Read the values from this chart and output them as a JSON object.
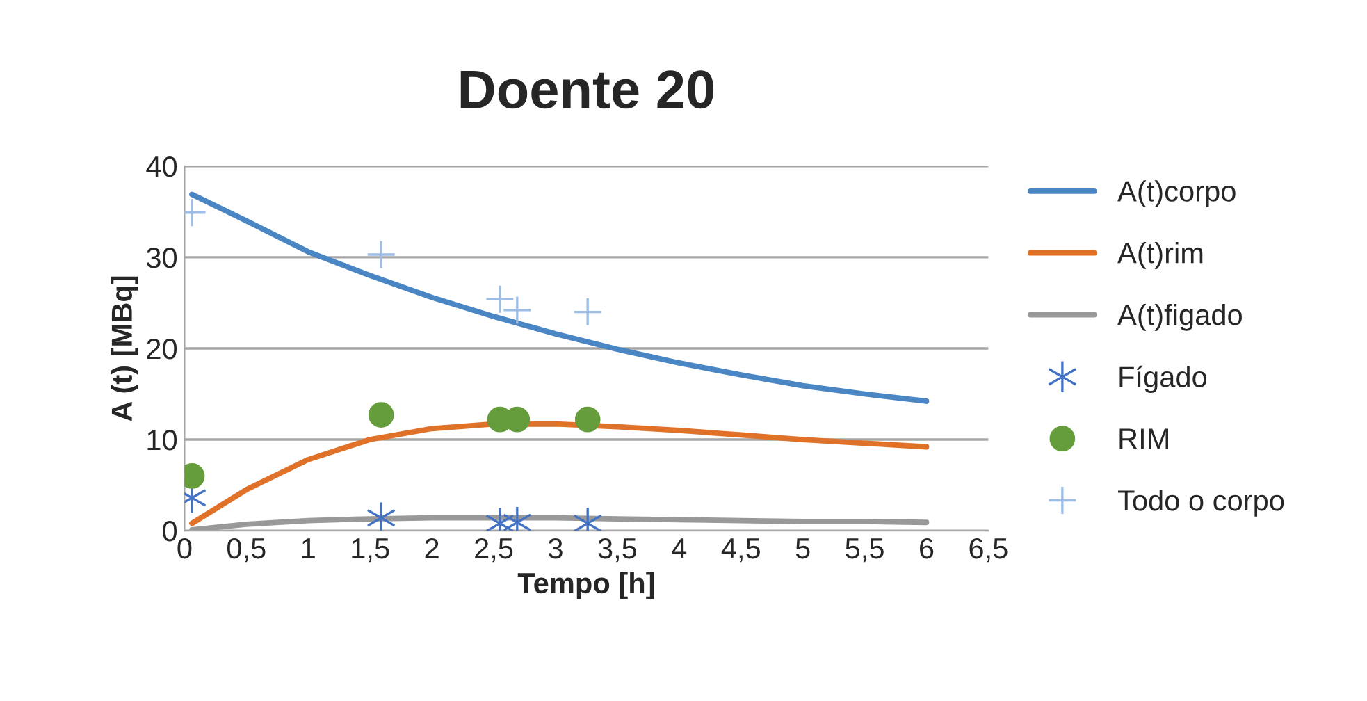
{
  "chart_data": {
    "type": "line",
    "title": "Doente 20",
    "xlabel": "Tempo [h]",
    "ylabel": "A (t) [MBq]",
    "xlim": [
      0,
      6.5
    ],
    "xticks": [
      0,
      {
        "value": 0.5,
        "label": "0,5"
      },
      1,
      {
        "value": 1.5,
        "label": "1,5"
      },
      2,
      {
        "value": 2.5,
        "label": "2,5"
      },
      3,
      {
        "value": 3.5,
        "label": "3,5"
      },
      4,
      {
        "value": 4.5,
        "label": "4,5"
      },
      5,
      {
        "value": 5.5,
        "label": "5,5"
      },
      6,
      {
        "value": 6.5,
        "label": "6,5"
      }
    ],
    "ylim": [
      0,
      40
    ],
    "yticks": [
      0,
      10,
      20,
      30,
      40
    ],
    "grid": "y",
    "legend": "right",
    "series": [
      {
        "name": "A(t)corpo",
        "color": "#4a86c4",
        "marker": "none",
        "x": [
          0.06,
          0.5,
          1,
          1.5,
          2,
          2.5,
          3,
          3.5,
          4,
          4.5,
          5,
          5.5,
          6
        ],
        "values": [
          36.9,
          34.0,
          30.6,
          28.0,
          25.6,
          23.5,
          21.6,
          19.9,
          18.4,
          17.1,
          15.9,
          15.0,
          14.2
        ]
      },
      {
        "name": "A(t)rim",
        "color": "#e07128",
        "marker": "none",
        "x": [
          0.06,
          0.5,
          1,
          1.5,
          2,
          2.5,
          3,
          3.5,
          4,
          4.5,
          5,
          5.5,
          6
        ],
        "values": [
          0.8,
          4.5,
          7.8,
          10.0,
          11.2,
          11.7,
          11.7,
          11.4,
          11.0,
          10.5,
          10.0,
          9.6,
          9.2
        ]
      },
      {
        "name": "A(t)figado",
        "color": "#999999",
        "marker": "none",
        "x": [
          0.06,
          0.5,
          1,
          1.5,
          2,
          2.5,
          3,
          3.5,
          4,
          4.5,
          5,
          5.5,
          6
        ],
        "values": [
          0.1,
          0.7,
          1.1,
          1.3,
          1.4,
          1.4,
          1.4,
          1.3,
          1.2,
          1.1,
          1.0,
          1.0,
          0.9
        ]
      },
      {
        "name": "Fígado",
        "type": "scatter",
        "color": "#4472c4",
        "marker": "cross",
        "x": [
          0.06,
          1.59,
          2.55,
          2.69,
          3.26
        ],
        "values": [
          3.6,
          1.4,
          0.8,
          0.9,
          0.8
        ]
      },
      {
        "name": "RIM",
        "type": "scatter",
        "color": "#659d3c",
        "marker": "circle",
        "x": [
          0.06,
          1.59,
          2.55,
          2.69,
          3.26
        ],
        "values": [
          6.0,
          12.7,
          12.2,
          12.2,
          12.2
        ]
      },
      {
        "name": "Todo o corpo",
        "type": "scatter",
        "color": "#9dbde6",
        "x": [
          0.06,
          1.59,
          2.55,
          2.69,
          3.26
        ],
        "values": [
          34.9,
          30.3,
          25.4,
          24.2,
          24.0
        ]
      }
    ]
  }
}
